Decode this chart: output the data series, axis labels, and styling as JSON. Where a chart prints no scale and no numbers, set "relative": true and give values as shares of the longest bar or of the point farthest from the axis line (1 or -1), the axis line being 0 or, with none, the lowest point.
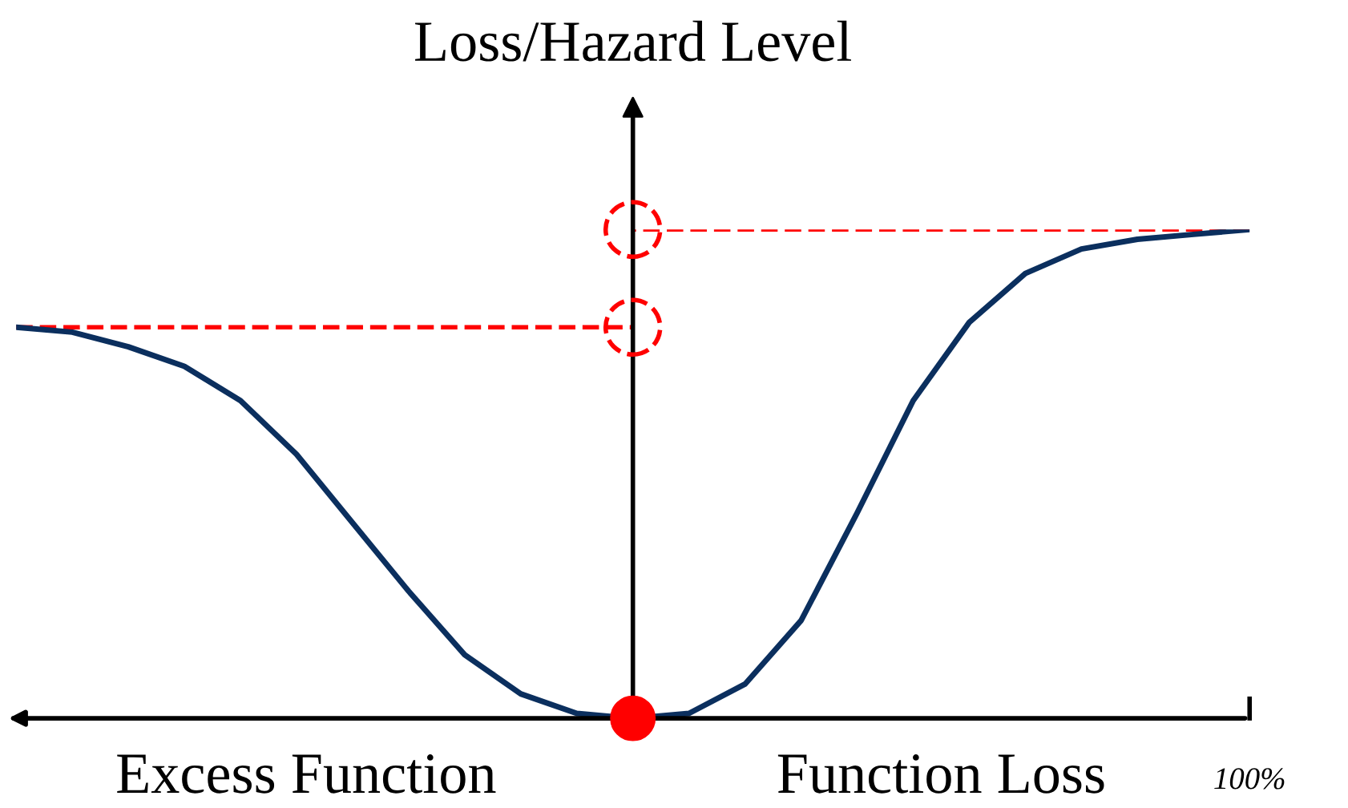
{
  "chart_data": {
    "type": "line",
    "relative": true,
    "ylabel": "Loss/Hazard Level",
    "categories": [
      null,
      null,
      null,
      null,
      null,
      null,
      null,
      null,
      null,
      null,
      null,
      null,
      null,
      null,
      null,
      null,
      null,
      null,
      null,
      null,
      null,
      null,
      null
    ],
    "series": [
      {
        "color": "#0b2f5e",
        "values": [
          0.8,
          0.79,
          0.76,
          0.72,
          0.65,
          0.54,
          0.4,
          0.26,
          0.13,
          0.05,
          0.01,
          0,
          0.01,
          0.07,
          0.2,
          0.42,
          0.65,
          0.81,
          0.91,
          0.96,
          0.98,
          0.99,
          1
        ]
      }
    ],
    "ref_lines": [
      {
        "axis": "y",
        "value": 0.8,
        "color": "#ff0000",
        "line_style": "dashed"
      },
      {
        "axis": "y",
        "value": 1,
        "color": "#ff0000",
        "line_style": "dashed"
      }
    ],
    "annotations": [
      "Excess Function",
      "Function Loss",
      "100%"
    ],
    "marker": "none",
    "line_style": "solid"
  }
}
